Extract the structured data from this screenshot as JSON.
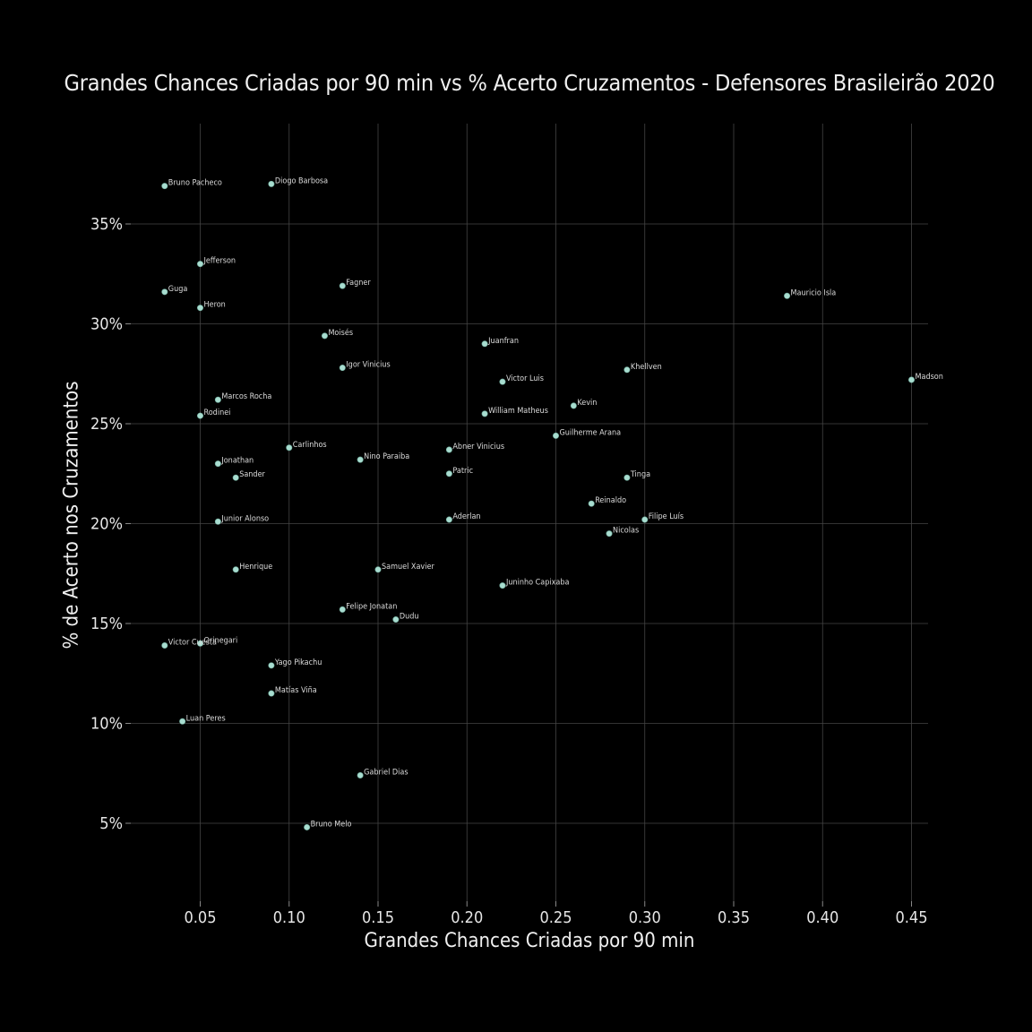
{
  "chart_data": {
    "type": "scatter",
    "title": "Grandes Chances Criadas por 90 min vs % Acerto Cruzamentos - Defensores Brasileirão 2020",
    "xlabel": "Grandes Chances Criadas por 90 min",
    "ylabel": "% de Acerto nos Cruzamentos",
    "xlim": [
      0.01,
      0.46
    ],
    "ylim": [
      0.01,
      0.4
    ],
    "x_ticks": [
      0.05,
      0.1,
      0.15,
      0.2,
      0.25,
      0.3,
      0.35,
      0.4,
      0.45
    ],
    "x_tick_labels": [
      "0.05",
      "0.10",
      "0.15",
      "0.20",
      "0.25",
      "0.30",
      "0.35",
      "0.40",
      "0.45"
    ],
    "y_ticks": [
      0.05,
      0.1,
      0.15,
      0.2,
      0.25,
      0.3,
      0.35
    ],
    "y_tick_labels": [
      "5%",
      "10%",
      "15%",
      "20%",
      "25%",
      "30%",
      "35%"
    ],
    "grid": true,
    "colors": {
      "background": "#000000",
      "point": "#a8ddd0",
      "grid": "#444444",
      "text": "#e6e6e6"
    },
    "points": [
      {
        "x": 0.03,
        "y": 0.369,
        "label": "Bruno Pacheco"
      },
      {
        "x": 0.09,
        "y": 0.37,
        "label": "Diogo Barbosa"
      },
      {
        "x": 0.05,
        "y": 0.33,
        "label": "Jefferson"
      },
      {
        "x": 0.03,
        "y": 0.316,
        "label": "Guga"
      },
      {
        "x": 0.05,
        "y": 0.308,
        "label": "Heron"
      },
      {
        "x": 0.13,
        "y": 0.319,
        "label": "Fagner"
      },
      {
        "x": 0.38,
        "y": 0.314,
        "label": "Mauricio Isla"
      },
      {
        "x": 0.12,
        "y": 0.294,
        "label": "Moisés"
      },
      {
        "x": 0.21,
        "y": 0.29,
        "label": "Juanfran"
      },
      {
        "x": 0.13,
        "y": 0.278,
        "label": "Igor Vinicius"
      },
      {
        "x": 0.29,
        "y": 0.277,
        "label": "Khellven"
      },
      {
        "x": 0.45,
        "y": 0.272,
        "label": "Madson"
      },
      {
        "x": 0.22,
        "y": 0.271,
        "label": "Victor Luis"
      },
      {
        "x": 0.06,
        "y": 0.262,
        "label": "Marcos Rocha"
      },
      {
        "x": 0.26,
        "y": 0.259,
        "label": "Kevin"
      },
      {
        "x": 0.05,
        "y": 0.254,
        "label": "Rodinei"
      },
      {
        "x": 0.21,
        "y": 0.255,
        "label": "William Matheus"
      },
      {
        "x": 0.25,
        "y": 0.244,
        "label": "Guilherme Arana"
      },
      {
        "x": 0.1,
        "y": 0.238,
        "label": "Carlinhos"
      },
      {
        "x": 0.19,
        "y": 0.237,
        "label": "Abner Vinicius"
      },
      {
        "x": 0.14,
        "y": 0.232,
        "label": "Nino Paraiba"
      },
      {
        "x": 0.06,
        "y": 0.23,
        "label": "Jonathan"
      },
      {
        "x": 0.19,
        "y": 0.225,
        "label": "Patric"
      },
      {
        "x": 0.07,
        "y": 0.223,
        "label": "Sander"
      },
      {
        "x": 0.29,
        "y": 0.223,
        "label": "Tinga"
      },
      {
        "x": 0.27,
        "y": 0.21,
        "label": "Reinaldo"
      },
      {
        "x": 0.06,
        "y": 0.201,
        "label": "Junior Alonso"
      },
      {
        "x": 0.19,
        "y": 0.202,
        "label": "Aderlan"
      },
      {
        "x": 0.3,
        "y": 0.202,
        "label": "Filipe Luís"
      },
      {
        "x": 0.28,
        "y": 0.195,
        "label": "Nicolas"
      },
      {
        "x": 0.07,
        "y": 0.177,
        "label": "Henrique"
      },
      {
        "x": 0.15,
        "y": 0.177,
        "label": "Samuel Xavier"
      },
      {
        "x": 0.22,
        "y": 0.169,
        "label": "Juninho Capixaba"
      },
      {
        "x": 0.13,
        "y": 0.157,
        "label": "Felipe Jonatan"
      },
      {
        "x": 0.16,
        "y": 0.152,
        "label": "Dudu"
      },
      {
        "x": 0.03,
        "y": 0.139,
        "label": "Victor Cuesta"
      },
      {
        "x": 0.05,
        "y": 0.14,
        "label": "Orinegari"
      },
      {
        "x": 0.09,
        "y": 0.129,
        "label": "Yago Pikachu"
      },
      {
        "x": 0.09,
        "y": 0.115,
        "label": "Matías Viña"
      },
      {
        "x": 0.04,
        "y": 0.101,
        "label": "Luan Peres"
      },
      {
        "x": 0.14,
        "y": 0.074,
        "label": "Gabriel Dias"
      },
      {
        "x": 0.11,
        "y": 0.048,
        "label": "Bruno Melo"
      }
    ]
  }
}
